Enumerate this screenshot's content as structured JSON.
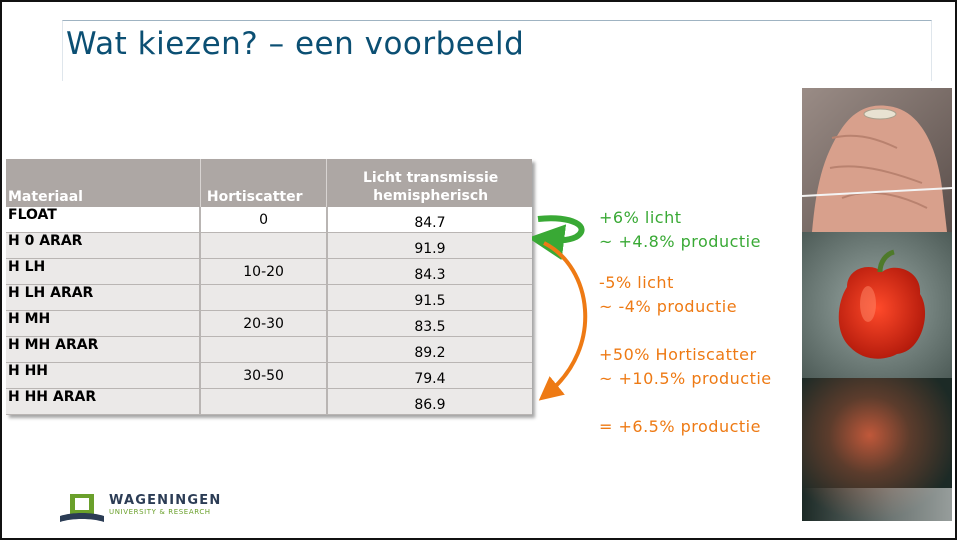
{
  "slide": {
    "title": "Wat kiezen? – een voorbeeld"
  },
  "table": {
    "headers": [
      "Materiaal",
      "Hortiscatter",
      "Licht transmissie hemispherisch"
    ],
    "rows": [
      {
        "materiaal": "FLOAT",
        "hortiscatter": "0",
        "licht": "84.7"
      },
      {
        "materiaal": "H 0 ARAR",
        "hortiscatter": "",
        "licht": "91.9"
      },
      {
        "materiaal": "H LH",
        "hortiscatter": "10-20",
        "licht": "84.3"
      },
      {
        "materiaal": "H LH ARAR",
        "hortiscatter": "",
        "licht": "91.5"
      },
      {
        "materiaal": "H MH",
        "hortiscatter": "20-30",
        "licht": "83.5"
      },
      {
        "materiaal": "H MH ARAR",
        "hortiscatter": "",
        "licht": "89.2"
      },
      {
        "materiaal": "H HH",
        "hortiscatter": "30-50",
        "licht": "79.4"
      },
      {
        "materiaal": "H HH ARAR",
        "hortiscatter": "",
        "licht": "86.9"
      }
    ]
  },
  "notes": {
    "green_1": "+6% licht",
    "green_2": "~ +4.8% productie",
    "orange_1": "-5% licht",
    "orange_2": "~ -4% productie",
    "orange_3": "+50% Hortiscatter",
    "orange_4": "~ +10.5% productie",
    "orange_5": "= +6.5% productie"
  },
  "colors": {
    "title": "#0b4f73",
    "header_bg": "#ada7a4",
    "green": "#39a935",
    "orange": "#ee7a14"
  },
  "logo": {
    "name": "WAGENINGEN",
    "subtitle": "UNIVERSITY & RESEARCH"
  }
}
